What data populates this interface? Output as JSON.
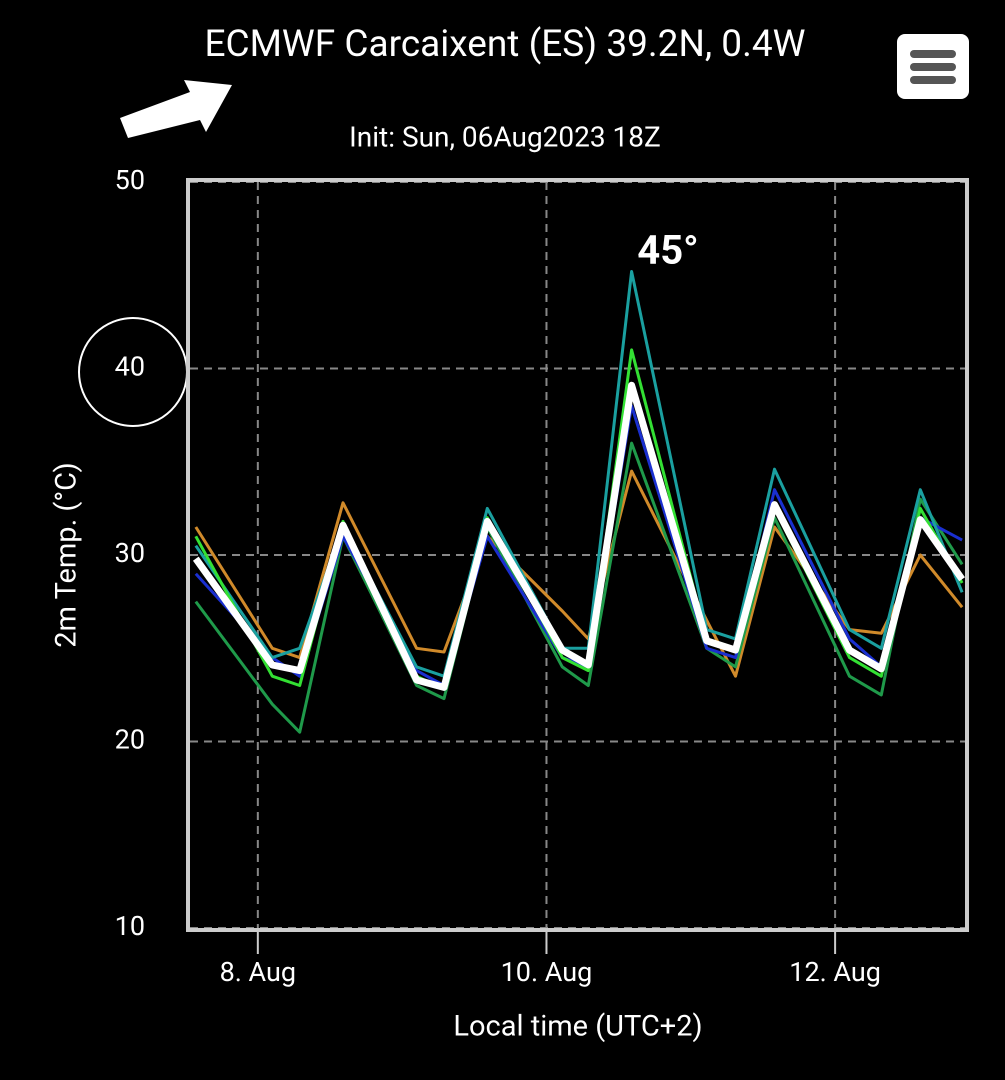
{
  "chart_data": {
    "type": "line",
    "title": "ECMWF Carcaixent (ES) 39.2N, 0.4W",
    "subtitle": "Init: Sun, 06Aug2023 18Z",
    "y_label": "2m Temp. (°C)",
    "x_label": "Local time (UTC+2)",
    "annotation": "45°",
    "x": [
      7.57,
      8.1,
      8.29,
      8.59,
      9.1,
      9.29,
      9.59,
      10.11,
      10.29,
      10.59,
      11.11,
      11.31,
      11.58,
      12.1,
      12.32,
      12.59,
      12.88
    ],
    "xlim": [
      7.53,
      12.9
    ],
    "xticks": [
      {
        "value": 8,
        "label": "8. Aug"
      },
      {
        "value": 10,
        "label": "10. Aug"
      },
      {
        "value": 12,
        "label": "12. Aug"
      }
    ],
    "ylim": [
      10,
      50
    ],
    "yticks": [
      10,
      20,
      30,
      40,
      50
    ],
    "grid": true,
    "series": [
      {
        "color": "#d08a2a",
        "values": [
          31.5,
          25,
          24.5,
          32.8,
          25,
          24.8,
          31,
          27,
          25.5,
          34.5,
          26.5,
          23.5,
          31.5,
          26,
          25.8,
          30,
          27.2
        ]
      },
      {
        "color": "#1f9a4a",
        "values": [
          27.5,
          22,
          20.5,
          31,
          23,
          22.3,
          31.5,
          24,
          23,
          36,
          25,
          24,
          32,
          23.5,
          22.5,
          33,
          29.5
        ]
      },
      {
        "color": "#1a2fd0",
        "values": [
          29,
          24.5,
          23.5,
          31,
          23.8,
          23,
          31,
          24.5,
          24,
          38,
          25,
          24.5,
          33.5,
          25.5,
          24,
          32,
          30.8
        ]
      },
      {
        "color": "#1aa0a0",
        "values": [
          30.5,
          24.5,
          25,
          31.5,
          24,
          23.5,
          32.5,
          25,
          25,
          45.2,
          26,
          25.5,
          34.6,
          26,
          25,
          33.5,
          28
        ]
      },
      {
        "color": "#33e033",
        "values": [
          31,
          23.5,
          23,
          31.8,
          23.5,
          22.8,
          32,
          24.5,
          23.8,
          41,
          25.5,
          25,
          32.5,
          24.5,
          23.5,
          32.5,
          28.5
        ]
      },
      {
        "color": "#ffffff",
        "values": [
          29.8,
          24.1,
          23.8,
          31.6,
          23.3,
          22.9,
          31.8,
          24.9,
          24.1,
          39.1,
          25.4,
          24.9,
          32.7,
          24.9,
          23.9,
          31.9,
          28.7
        ]
      }
    ]
  }
}
